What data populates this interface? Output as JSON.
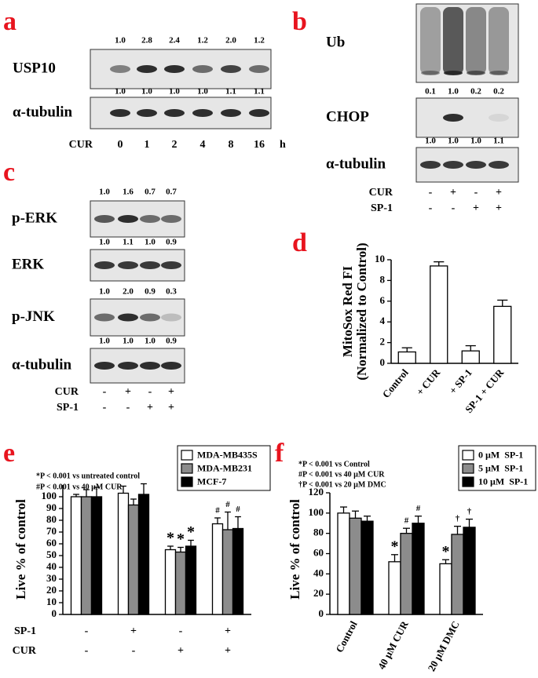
{
  "panels": [
    {
      "label": "a",
      "blots": [
        {
          "name": "USP10",
          "values": [
            "1.0",
            "2.8",
            "2.4",
            "1.2",
            "2.0",
            "1.2"
          ]
        },
        {
          "name": "α-tubulin",
          "values": [
            "1.0",
            "1.0",
            "1.0",
            "1.0",
            "1.1",
            "1.1"
          ]
        }
      ],
      "conditions": [
        {
          "name": "CUR",
          "values": [
            "0",
            "1",
            "2",
            "4",
            "8",
            "16"
          ],
          "unit": "h"
        }
      ]
    },
    {
      "label": "b",
      "blots": [
        {
          "name": "Ub"
        },
        {
          "name": "CHOP",
          "values": [
            "0.1",
            "1.0",
            "0.2",
            "0.2"
          ]
        },
        {
          "name": "α-tubulin",
          "values": [
            "1.0",
            "1.0",
            "1.0",
            "1.1"
          ]
        }
      ],
      "conditions": [
        {
          "name": "CUR",
          "values": [
            "-",
            "+",
            "-",
            "+"
          ]
        },
        {
          "name": "SP-1",
          "values": [
            "-",
            "-",
            "+",
            "+"
          ]
        }
      ]
    },
    {
      "label": "c",
      "blots": [
        {
          "name": "p-ERK",
          "values": [
            "1.0",
            "1.6",
            "0.7",
            "0.7"
          ]
        },
        {
          "name": "ERK",
          "values": [
            "1.0",
            "1.1",
            "1.0",
            "0.9"
          ]
        },
        {
          "name": "p-JNK",
          "values": [
            "1.0",
            "2.0",
            "0.9",
            "0.3"
          ]
        },
        {
          "name": "α-tubulin",
          "values": [
            "1.0",
            "1.0",
            "1.0",
            "0.9"
          ]
        }
      ],
      "conditions": [
        {
          "name": "CUR",
          "values": [
            "-",
            "+",
            "-",
            "+"
          ]
        },
        {
          "name": "SP-1",
          "values": [
            "-",
            "-",
            "+",
            "+"
          ]
        }
      ]
    }
  ],
  "chart_data": [
    {
      "label": "d",
      "type": "bar",
      "y_label": [
        "MitoSox Red FI",
        "(Normalized to Control)"
      ],
      "categories": [
        "Control",
        "+ CUR",
        "+ SP-1",
        "SP-1 + CUR"
      ],
      "values": [
        1.1,
        9.4,
        1.2,
        5.5
      ],
      "errors": [
        0.4,
        0.4,
        0.5,
        0.6
      ],
      "color": "#ffffff",
      "ylim": [
        0,
        10
      ],
      "yticks": [
        0,
        2,
        4,
        6,
        8,
        10
      ]
    },
    {
      "label": "e",
      "type": "bar",
      "y_label": "Live % of control",
      "annotations": [
        "*P < 0.001 vs untreated control",
        "#P < 0.001 vs 40 µM CUR"
      ],
      "categories": [
        null,
        null,
        null,
        null
      ],
      "conditions": [
        {
          "name": "SP-1",
          "values": [
            "-",
            "+",
            "-",
            "+"
          ]
        },
        {
          "name": "CUR",
          "values": [
            "-",
            "-",
            "+",
            "+"
          ]
        }
      ],
      "series": [
        {
          "name": "MDA-MB435S",
          "color": "#ffffff",
          "values": [
            100,
            103,
            55,
            77
          ],
          "errors": [
            2,
            6,
            3,
            5
          ],
          "markers": [
            null,
            null,
            "*",
            "#"
          ]
        },
        {
          "name": "MDA-MB231",
          "color": "#8c8c8c",
          "values": [
            100,
            93,
            53,
            72
          ],
          "errors": [
            6,
            5,
            4,
            15
          ],
          "markers": [
            null,
            null,
            "*",
            "#"
          ]
        },
        {
          "name": "MCF-7",
          "color": "#000000",
          "values": [
            100,
            102,
            58,
            73
          ],
          "errors": [
            8,
            9,
            5,
            10
          ],
          "markers": [
            null,
            null,
            "*",
            "#"
          ]
        }
      ],
      "ylim": [
        0,
        110
      ],
      "yticks": [
        0,
        10,
        20,
        30,
        40,
        50,
        60,
        70,
        80,
        90,
        100
      ]
    },
    {
      "label": "f",
      "type": "bar",
      "y_label": "Live % of control",
      "annotations": [
        "*P < 0.001 vs Control",
        "#P < 0.001 vs 40 µM CUR",
        "†P < 0.001 vs 20 µM DMC"
      ],
      "categories": [
        "Control",
        "40 µM CUR",
        "20 µM DMC"
      ],
      "series": [
        {
          "name": "0 µM  SP-1",
          "color": "#ffffff",
          "values": [
            100,
            52,
            50
          ],
          "errors": [
            6,
            7,
            4
          ],
          "markers": [
            null,
            "*",
            "*"
          ]
        },
        {
          "name": "5 µM  SP-1",
          "color": "#8c8c8c",
          "values": [
            95,
            80,
            79
          ],
          "errors": [
            7,
            5,
            8
          ],
          "markers": [
            null,
            "#",
            "†"
          ]
        },
        {
          "name": "10 µM  SP-1",
          "color": "#000000",
          "values": [
            92,
            90,
            86
          ],
          "errors": [
            5,
            7,
            8
          ],
          "markers": [
            null,
            "#",
            "†"
          ]
        }
      ],
      "ylim": [
        0,
        120
      ],
      "yticks": [
        0,
        20,
        40,
        60,
        80,
        100,
        120
      ]
    }
  ]
}
